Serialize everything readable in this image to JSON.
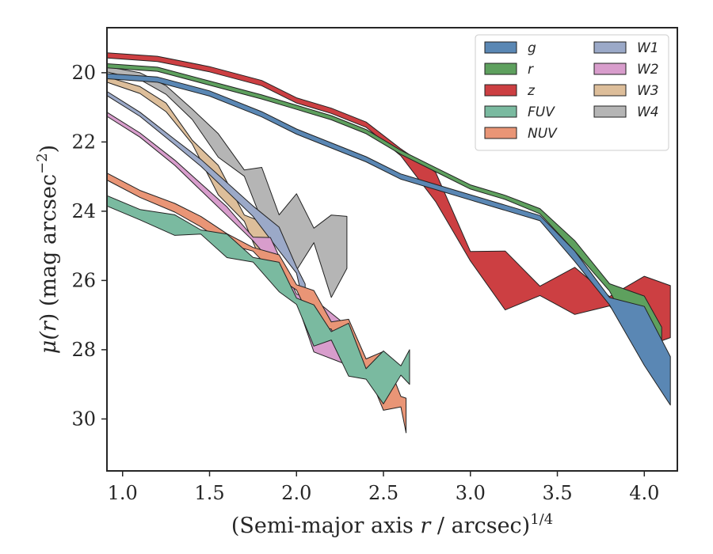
{
  "chart_data": {
    "type": "area",
    "xlabel_main": "(Semi-major axis ",
    "xlabel_var": "r",
    "xlabel_unit": " / arcsec)",
    "xlabel_exp": "1/4",
    "ylabel_main": "μ(",
    "ylabel_var": "r",
    "ylabel_unit": ") (mag arcsec",
    "ylabel_exp": "−2",
    "ylabel_close": ")",
    "xlim": [
      0.91,
      4.19
    ],
    "ylim": [
      31.5,
      18.7
    ],
    "y_inverted": true,
    "xticks": [
      1.0,
      1.5,
      2.0,
      2.5,
      3.0,
      3.5,
      4.0
    ],
    "xtick_labels": [
      "1.0",
      "1.5",
      "2.0",
      "2.5",
      "3.0",
      "3.5",
      "4.0"
    ],
    "yticks": [
      20,
      22,
      24,
      26,
      28,
      30
    ],
    "ytick_labels": [
      "20",
      "22",
      "24",
      "26",
      "28",
      "30"
    ],
    "grid": false,
    "legend_position": "top-right",
    "legend_columns": 2,
    "series": [
      {
        "name": "g",
        "color": "#5a87b4",
        "x": [
          0.91,
          1.2,
          1.5,
          1.8,
          2.0,
          2.2,
          2.4,
          2.6,
          2.8,
          3.0,
          3.2,
          3.4,
          3.6,
          3.8,
          4.0,
          4.15
        ],
        "y": [
          20.1,
          20.2,
          20.6,
          21.2,
          21.7,
          22.1,
          22.5,
          23.0,
          23.3,
          23.6,
          23.9,
          24.2,
          25.3,
          26.6,
          27.6,
          28.9
        ],
        "band": [
          0.15,
          0.15,
          0.15,
          0.15,
          0.15,
          0.15,
          0.15,
          0.15,
          0.15,
          0.15,
          0.15,
          0.15,
          0.3,
          0.7,
          1.0,
          1.4
        ]
      },
      {
        "name": "r",
        "color": "#5ea05e",
        "x": [
          0.91,
          1.2,
          1.5,
          1.8,
          2.0,
          2.2,
          2.4,
          2.6,
          2.8,
          3.0,
          3.2,
          3.4,
          3.6,
          3.8,
          4.0,
          4.1
        ],
        "y": [
          19.8,
          19.9,
          20.3,
          20.7,
          21.0,
          21.3,
          21.7,
          22.3,
          22.8,
          23.3,
          23.6,
          24.0,
          25.0,
          26.2,
          27.3,
          28.0
        ],
        "band": [
          0.12,
          0.12,
          0.12,
          0.12,
          0.12,
          0.12,
          0.12,
          0.12,
          0.12,
          0.12,
          0.12,
          0.15,
          0.3,
          0.7,
          1.0,
          1.3
        ]
      },
      {
        "name": "z",
        "color": "#cc3f42",
        "x": [
          0.91,
          1.2,
          1.5,
          1.8,
          2.0,
          2.2,
          2.4,
          2.6,
          2.8,
          3.0,
          3.2,
          3.4,
          3.6,
          3.8,
          4.0,
          4.15
        ],
        "y": [
          19.5,
          19.6,
          19.9,
          20.3,
          20.8,
          21.1,
          21.5,
          22.3,
          23.3,
          25.3,
          26.0,
          26.3,
          26.3,
          26.6,
          26.9,
          26.9
        ],
        "band": [
          0.15,
          0.15,
          0.15,
          0.15,
          0.15,
          0.15,
          0.15,
          0.2,
          0.5,
          0.9,
          1.0,
          0.9,
          0.8,
          0.9,
          1.2,
          1.5
        ]
      },
      {
        "name": "FUV",
        "color": "#7abaa0",
        "x": [
          0.91,
          1.1,
          1.3,
          1.45,
          1.6,
          1.75,
          1.9,
          2.0,
          2.1,
          2.2,
          2.3,
          2.4,
          2.5,
          2.6,
          2.65
        ],
        "y": [
          23.7,
          24.1,
          24.4,
          24.6,
          25.0,
          25.4,
          25.9,
          26.6,
          27.3,
          27.6,
          28.0,
          28.7,
          28.8,
          28.6,
          28.5
        ],
        "band": [
          0.3,
          0.3,
          0.35,
          0.4,
          0.4,
          0.45,
          0.5,
          0.6,
          0.7,
          0.8,
          0.9,
          1.0,
          0.9,
          0.9,
          1.0
        ]
      },
      {
        "name": "NUV",
        "color": "#e99576",
        "x": [
          0.91,
          1.1,
          1.3,
          1.45,
          1.6,
          1.75,
          1.9,
          2.0,
          2.1,
          2.2,
          2.3,
          2.4,
          2.5,
          2.6,
          2.63
        ],
        "y": [
          23.0,
          23.5,
          23.9,
          24.3,
          24.8,
          25.1,
          25.6,
          26.2,
          26.8,
          27.3,
          27.8,
          28.4,
          28.9,
          29.5,
          29.9
        ],
        "band": [
          0.2,
          0.2,
          0.25,
          0.3,
          0.3,
          0.35,
          0.4,
          0.5,
          0.6,
          0.7,
          0.8,
          0.9,
          1.0,
          1.0,
          1.0
        ]
      },
      {
        "name": "W1",
        "color": "#9ba9c8",
        "x": [
          0.91,
          1.1,
          1.3,
          1.45,
          1.6,
          1.75,
          1.9,
          2.0,
          2.05
        ],
        "y": [
          20.6,
          21.2,
          22.0,
          22.6,
          23.3,
          24.0,
          24.8,
          25.7,
          26.5
        ],
        "band": [
          0.12,
          0.12,
          0.15,
          0.2,
          0.25,
          0.3,
          0.4,
          0.6,
          0.8
        ]
      },
      {
        "name": "W2",
        "color": "#d89dcc",
        "x": [
          0.91,
          1.1,
          1.3,
          1.45,
          1.6,
          1.75,
          1.85,
          2.0,
          2.1,
          2.3
        ],
        "y": [
          21.2,
          21.8,
          22.6,
          23.3,
          24.0,
          24.8,
          25.1,
          26.5,
          27.3,
          27.9
        ],
        "band": [
          0.12,
          0.12,
          0.15,
          0.2,
          0.25,
          0.35,
          0.4,
          0.7,
          0.9,
          1.1
        ]
      },
      {
        "name": "W3",
        "color": "#ddbe9a",
        "x": [
          0.91,
          1.1,
          1.25,
          1.4,
          1.55,
          1.7,
          1.8,
          1.9
        ],
        "y": [
          20.2,
          20.5,
          21.0,
          22.0,
          23.1,
          24.2,
          24.9,
          25.8
        ],
        "band": [
          0.15,
          0.2,
          0.25,
          0.35,
          0.5,
          0.6,
          0.7,
          0.8
        ]
      },
      {
        "name": "W4",
        "color": "#b5b5b5",
        "x": [
          0.91,
          1.1,
          1.25,
          1.4,
          1.55,
          1.7,
          1.8,
          1.9,
          2.0,
          2.1,
          2.2,
          2.29
        ],
        "y": [
          19.9,
          20.1,
          20.5,
          21.2,
          22.1,
          22.9,
          23.5,
          24.3,
          24.6,
          24.7,
          25.3,
          24.9
        ],
        "band": [
          0.15,
          0.2,
          0.25,
          0.3,
          0.4,
          0.6,
          0.9,
          1.3,
          1.3,
          1.4,
          1.4,
          1.5
        ]
      }
    ]
  }
}
